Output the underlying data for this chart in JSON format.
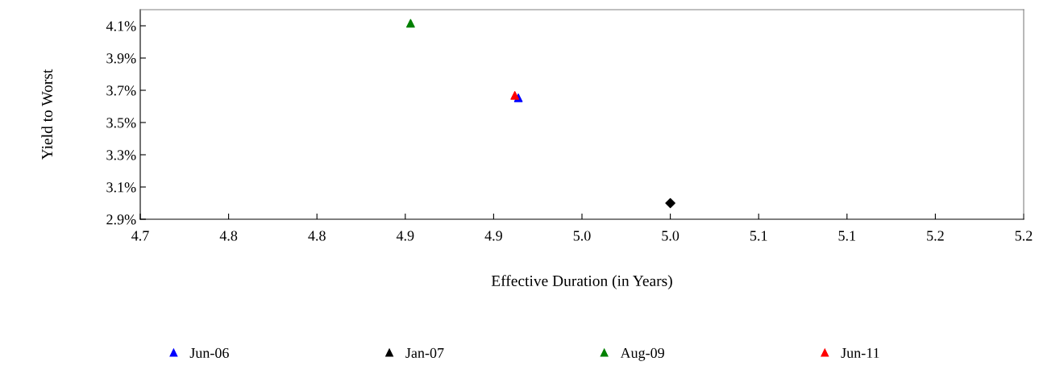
{
  "chart_data": {
    "type": "scatter",
    "xlabel": "Effective Duration (in Years)",
    "ylabel": "Yield to Worst",
    "xlim": [
      4.7,
      5.2
    ],
    "xticks": [
      4.7,
      {
        "value": 4.75,
        "label": "4.8"
      },
      4.8,
      {
        "value": 4.85,
        "label": "4.9"
      },
      4.9,
      {
        "value": 4.95,
        "label": "5.0"
      },
      {
        "value": 5.0,
        "label": "5.0"
      },
      {
        "value": 5.05,
        "label": "5.1"
      },
      5.1,
      {
        "value": 5.15,
        "label": "5.2"
      },
      5.2
    ],
    "ylim": [
      2.9,
      4.2
    ],
    "yticks": [
      {
        "value": 2.9,
        "label": "2.9%"
      },
      {
        "value": 3.1,
        "label": "3.1%"
      },
      {
        "value": 3.3,
        "label": "3.3%"
      },
      {
        "value": 3.5,
        "label": "3.5%"
      },
      {
        "value": 3.7,
        "label": "3.7%"
      },
      {
        "value": 3.9,
        "label": "3.9%"
      },
      {
        "value": 4.1,
        "label": "4.1%"
      }
    ],
    "grid": false,
    "legend": "bottom",
    "series": [
      {
        "name": "Jun-06",
        "color": "#0000ff",
        "marker": "triangle",
        "x": [
          4.914
        ],
        "values": [
          3.653
        ]
      },
      {
        "name": "Jan-07",
        "color": "#000000",
        "marker": "triangle",
        "x": [
          null
        ],
        "values": [
          null
        ]
      },
      {
        "name": "Aug-09",
        "color": "#008000",
        "marker": "triangle",
        "x": [
          4.853
        ],
        "values": [
          4.115
        ]
      },
      {
        "name": "Jun-11",
        "color": "#ff0000",
        "marker": "triangle",
        "x": [
          4.912
        ],
        "values": [
          3.668
        ]
      },
      {
        "color": "#000000",
        "marker": "diamond",
        "x": [
          5.0
        ],
        "values": [
          3.0
        ]
      }
    ]
  }
}
